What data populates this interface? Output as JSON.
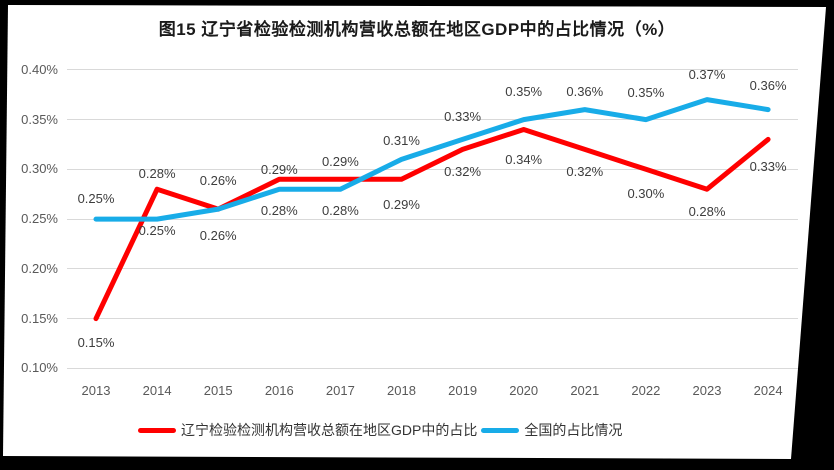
{
  "title": "图15 辽宁省检验检测机构营收总额在地区GDP中的占比情况（%）",
  "chart_data": {
    "type": "line",
    "title": "图15 辽宁省检验检测机构营收总额在地区GDP中的占比情况（%）",
    "categories": [
      "2013",
      "2014",
      "2015",
      "2016",
      "2017",
      "2018",
      "2019",
      "2020",
      "2021",
      "2022",
      "2023",
      "2024"
    ],
    "y_ticks": [
      "0.40%",
      "0.35%",
      "0.30%",
      "0.25%",
      "0.20%",
      "0.15%",
      "0.10%"
    ],
    "ylim": [
      0.1,
      0.4
    ],
    "grid": true,
    "legend_position": "bottom",
    "xlabel": "",
    "ylabel": "",
    "series": [
      {
        "name": "辽宁检验检测机构营收总额在地区GDP中的占比",
        "color": "#FF0000",
        "values": [
          0.15,
          0.28,
          0.26,
          0.29,
          0.29,
          0.29,
          0.32,
          0.34,
          0.32,
          0.3,
          0.28,
          0.33
        ],
        "labels": [
          "0.15%",
          "0.28%",
          "0.26%",
          "0.29%",
          "0.29%",
          "0.29%",
          "0.32%",
          "0.34%",
          "0.32%",
          "0.30%",
          "0.28%",
          "0.33%"
        ],
        "label_dy": [
          24,
          -15,
          -28,
          -9,
          -17,
          26,
          23,
          30,
          23,
          25,
          23,
          28
        ]
      },
      {
        "name": "全国的占比情况",
        "color": "#18ACE8",
        "values": [
          0.25,
          0.25,
          0.26,
          0.28,
          0.28,
          0.31,
          0.33,
          0.35,
          0.36,
          0.35,
          0.37,
          0.36
        ],
        "labels": [
          "0.25%",
          "0.25%",
          "0.26%",
          "0.28%",
          "0.28%",
          "0.31%",
          "0.33%",
          "0.35%",
          "0.36%",
          "0.35%",
          "0.37%",
          "0.36%"
        ],
        "label_dy": [
          -20,
          12,
          27,
          22,
          22,
          -18,
          -22,
          -28,
          -18,
          -27,
          -25,
          -24
        ]
      }
    ]
  }
}
